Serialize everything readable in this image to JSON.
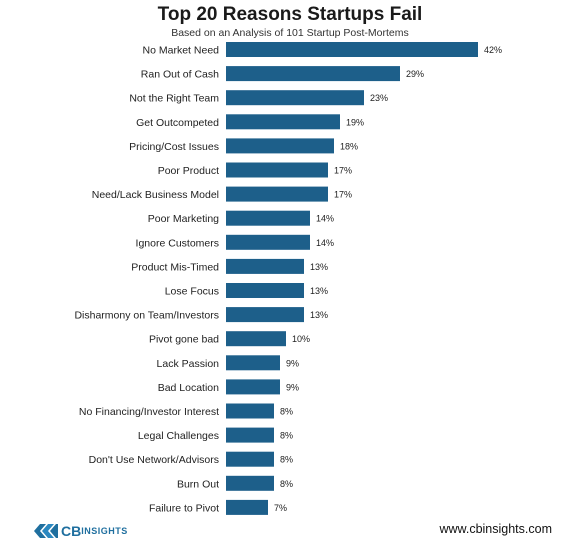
{
  "header": {
    "title": "Top 20 Reasons Startups Fail",
    "subtitle": "Based on an Analysis of 101 Startup Post-Mortems"
  },
  "footer": {
    "brand_cb": "CB",
    "brand_insights": "INSIGHTS",
    "website": "www.cbinsights.com"
  },
  "colors": {
    "bar": "#1d5f8a",
    "text": "#222222",
    "brand": "#1f6f9f"
  },
  "chart_data": {
    "type": "bar",
    "orientation": "horizontal",
    "title": "Top 20 Reasons Startups Fail",
    "subtitle": "Based on an Analysis of 101 Startup Post-Mortems",
    "xlabel": "",
    "ylabel": "",
    "xlim": [
      0,
      42
    ],
    "grid": false,
    "legend": "none",
    "categories": [
      "No Market Need",
      "Ran Out of Cash",
      "Not the Right Team",
      "Get Outcompeted",
      "Pricing/Cost Issues",
      "Poor Product",
      "Need/Lack Business Model",
      "Poor Marketing",
      "Ignore Customers",
      "Product Mis-Timed",
      "Lose Focus",
      "Disharmony on Team/Investors",
      "Pivot gone bad",
      "Lack Passion",
      "Bad Location",
      "No Financing/Investor Interest",
      "Legal Challenges",
      "Don't Use Network/Advisors",
      "Burn Out",
      "Failure to Pivot"
    ],
    "values": [
      42,
      29,
      23,
      19,
      18,
      17,
      17,
      14,
      14,
      13,
      13,
      13,
      10,
      9,
      9,
      8,
      8,
      8,
      8,
      7
    ],
    "value_labels": [
      "42%",
      "29%",
      "23%",
      "19%",
      "18%",
      "17%",
      "17%",
      "14%",
      "14%",
      "13%",
      "13%",
      "13%",
      "10%",
      "9%",
      "9%",
      "8%",
      "8%",
      "8%",
      "8%",
      "7%"
    ]
  }
}
